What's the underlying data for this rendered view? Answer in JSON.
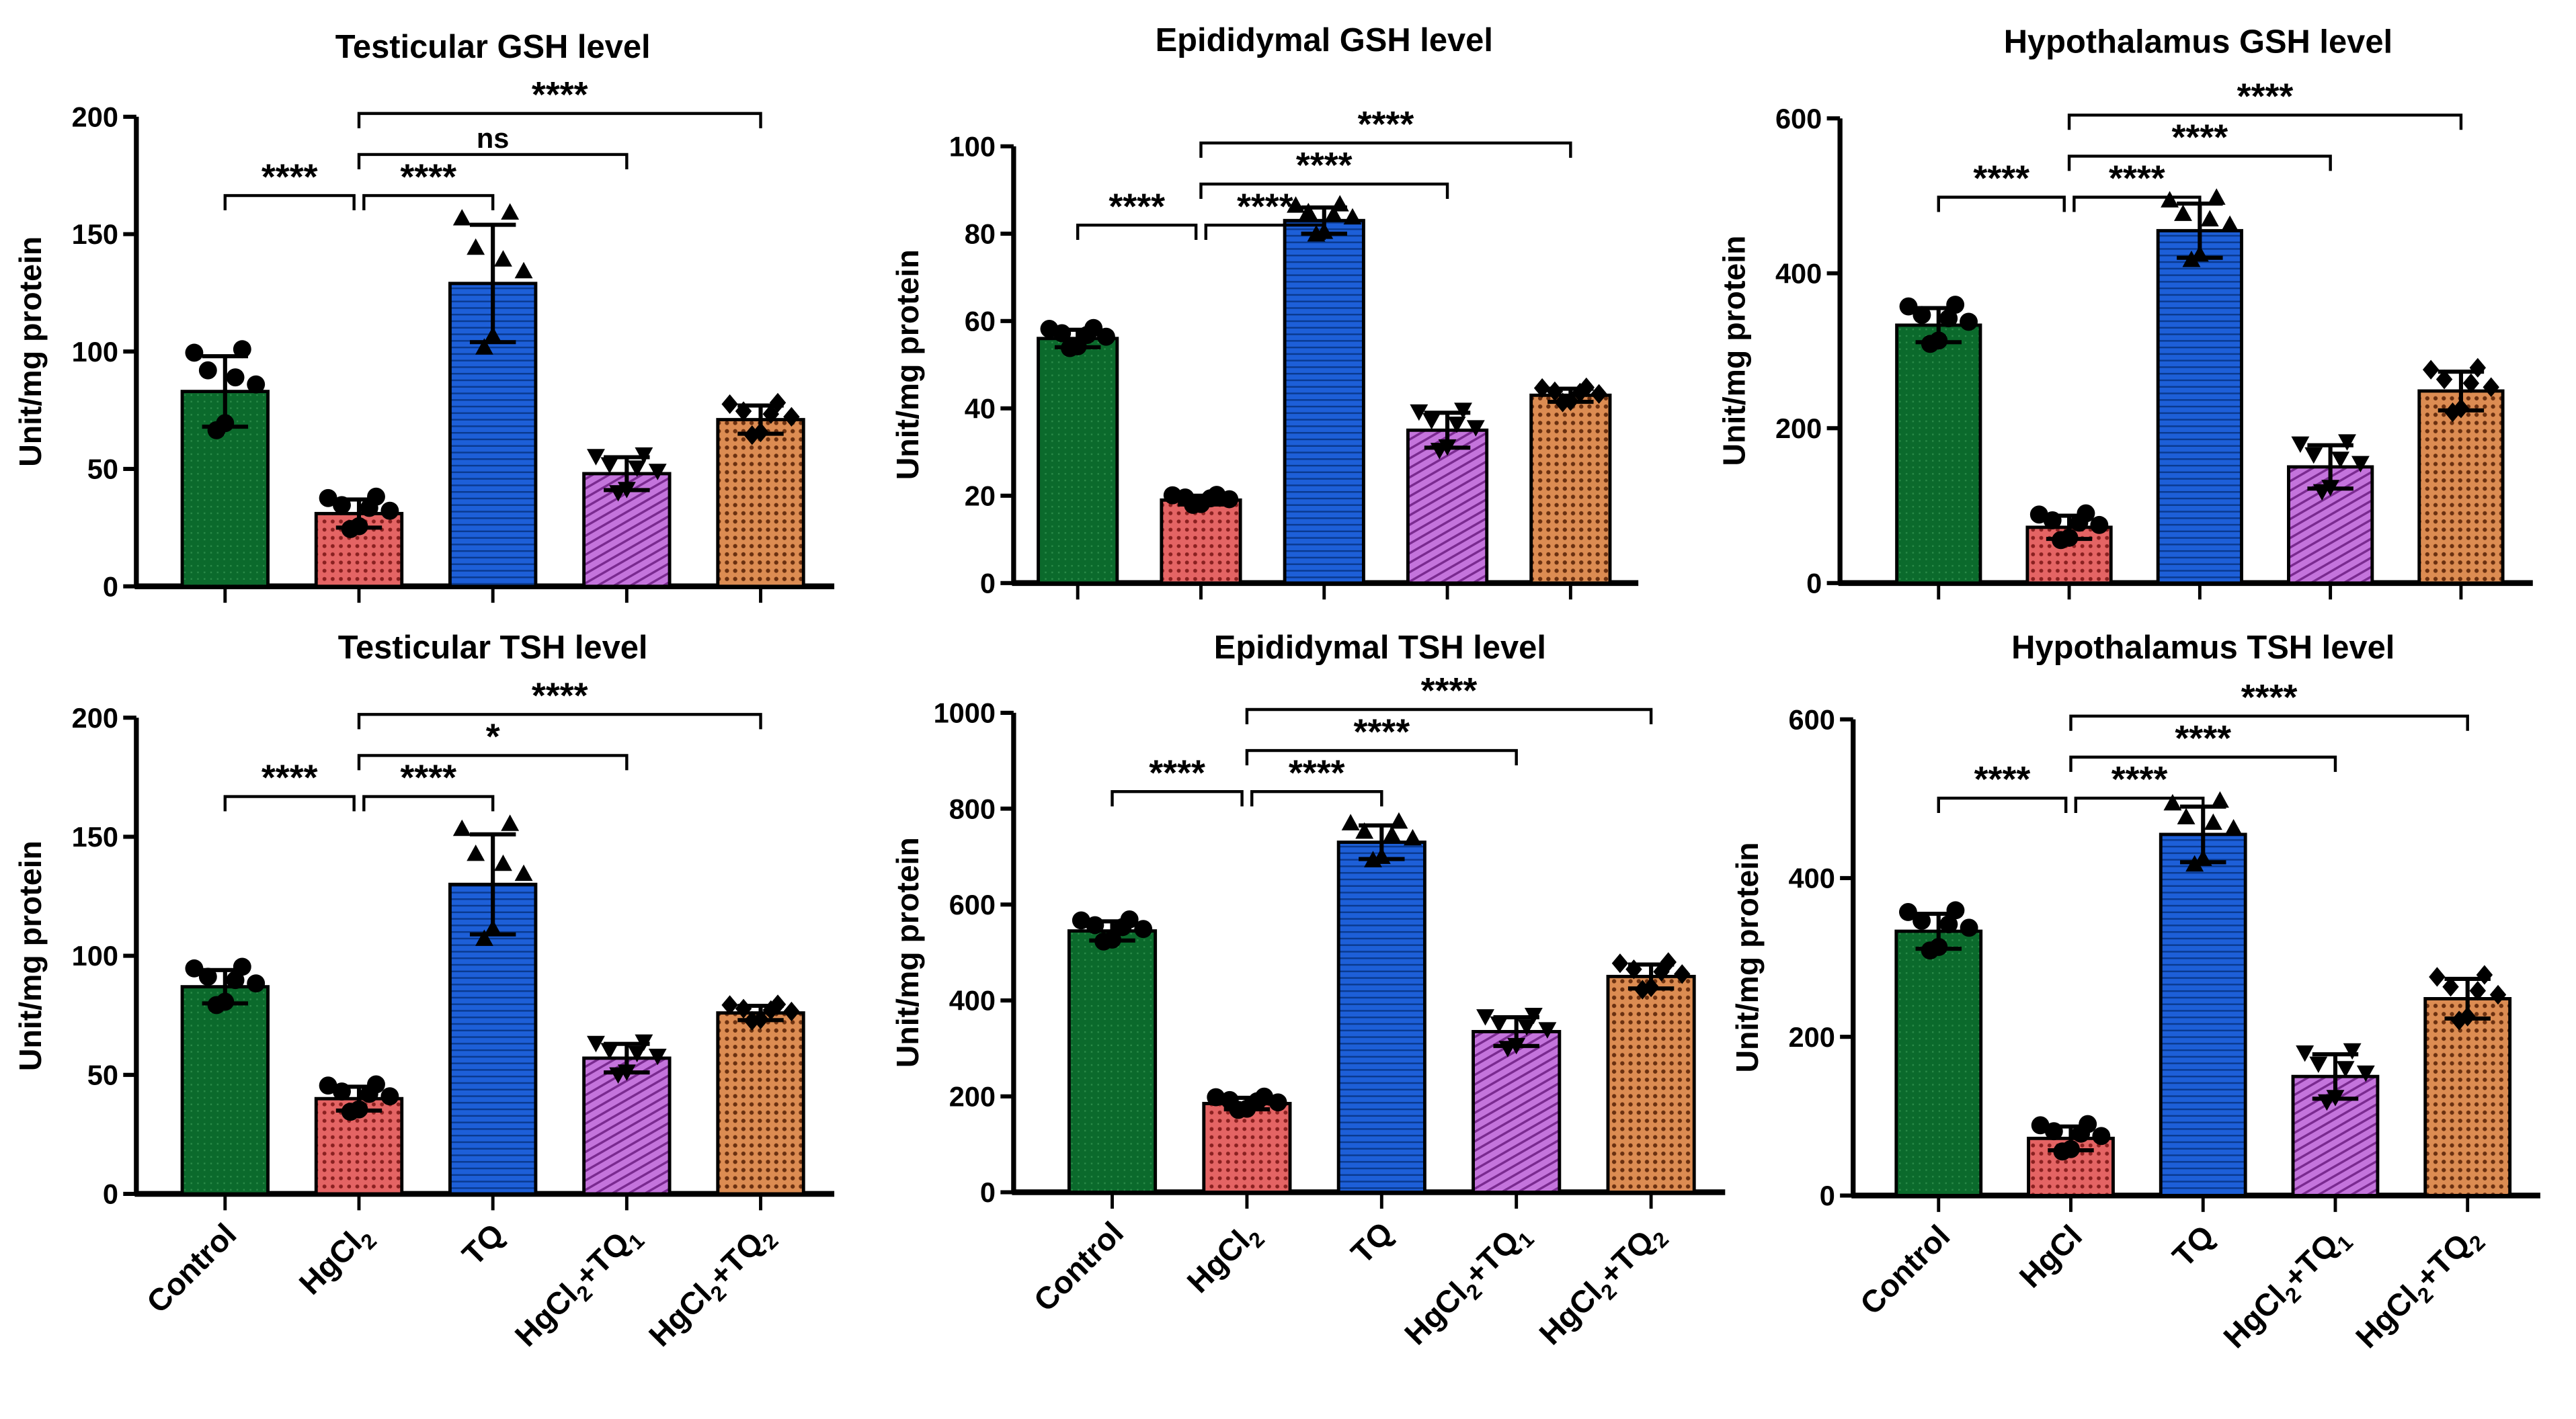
{
  "chart_data": [
    {
      "type": "bar",
      "title": "Testicular GSH level",
      "ylabel": "Unit/mg protein",
      "ylim": [
        0,
        200
      ],
      "yticks": [
        0,
        50,
        100,
        150,
        200
      ],
      "categories": [
        {
          "t": "Control"
        },
        {
          "t": "HgCl",
          "sub": "2"
        },
        {
          "t": "TQ"
        },
        {
          "t": "HgCl",
          "sub": "2",
          "t2": "+TQ",
          "sub2": "1"
        },
        {
          "t": "HgCl",
          "sub": "2",
          "t2": "+TQ",
          "sub2": "2"
        }
      ],
      "show_xlabels": false,
      "values": [
        83,
        31,
        129,
        48,
        71
      ],
      "sd": [
        15,
        6,
        25,
        7,
        6
      ],
      "comparisons": [
        {
          "a": 0,
          "b": 1,
          "label": "****",
          "tier": 0
        },
        {
          "a": 1,
          "b": 2,
          "label": "****",
          "tier": 0
        },
        {
          "a": 1,
          "b": 3,
          "label": "ns",
          "tier": 1
        },
        {
          "a": 1,
          "b": 4,
          "label": "****",
          "tier": 2
        }
      ]
    },
    {
      "type": "bar",
      "title": "Epididymal GSH level",
      "ylabel": "Unit/mg protein",
      "ylim": [
        0,
        100
      ],
      "yticks": [
        0,
        20,
        40,
        60,
        80,
        100
      ],
      "categories": [
        {
          "t": "Control"
        },
        {
          "t": "HgCl",
          "sub": "2"
        },
        {
          "t": "TQ"
        },
        {
          "t": "HgCl",
          "sub": "2",
          "t2": "+TQ",
          "sub2": "1"
        },
        {
          "t": "HgCl",
          "sub": "2",
          "t2": "+TQ",
          "sub2": "2"
        }
      ],
      "show_xlabels": false,
      "values": [
        56,
        19,
        83,
        35,
        43
      ],
      "sd": [
        2,
        1,
        3,
        4,
        1.5
      ],
      "comparisons": [
        {
          "a": 0,
          "b": 1,
          "label": "****",
          "tier": 0
        },
        {
          "a": 1,
          "b": 2,
          "label": "****",
          "tier": 0
        },
        {
          "a": 1,
          "b": 3,
          "label": "****",
          "tier": 1
        },
        {
          "a": 1,
          "b": 4,
          "label": "****",
          "tier": 2
        }
      ]
    },
    {
      "type": "bar",
      "title": "Hypothalamus GSH level",
      "ylabel": "Unit/mg protein",
      "ylim": [
        0,
        600
      ],
      "yticks": [
        0,
        200,
        400,
        600
      ],
      "categories": [
        {
          "t": "Control"
        },
        {
          "t": "HgCl"
        },
        {
          "t": "TQ"
        },
        {
          "t": "HgCl",
          "sub": "2",
          "t2": "+TQ",
          "sub2": "1"
        },
        {
          "t": "HgCl",
          "sub": "2",
          "t2": "+TQ",
          "sub2": "2"
        }
      ],
      "show_xlabels": false,
      "values": [
        333,
        72,
        455,
        150,
        248
      ],
      "sd": [
        22,
        15,
        35,
        28,
        25
      ],
      "comparisons": [
        {
          "a": 0,
          "b": 1,
          "label": "****",
          "tier": 0
        },
        {
          "a": 1,
          "b": 2,
          "label": "****",
          "tier": 0
        },
        {
          "a": 1,
          "b": 3,
          "label": "****",
          "tier": 1
        },
        {
          "a": 1,
          "b": 4,
          "label": "****",
          "tier": 2
        }
      ]
    },
    {
      "type": "bar",
      "title": "Testicular TSH level",
      "ylabel": "Unit/mg protein",
      "ylim": [
        0,
        200
      ],
      "yticks": [
        0,
        50,
        100,
        150,
        200
      ],
      "categories": [
        {
          "t": "Control"
        },
        {
          "t": "HgCl",
          "sub": "2"
        },
        {
          "t": "TQ"
        },
        {
          "t": "HgCl",
          "sub": "2",
          "t2": "+TQ",
          "sub2": "1"
        },
        {
          "t": "HgCl",
          "sub": "2",
          "t2": "+TQ",
          "sub2": "2"
        }
      ],
      "show_xlabels": true,
      "values": [
        87,
        40,
        130,
        57,
        76
      ],
      "sd": [
        7,
        5,
        21,
        6,
        3
      ],
      "comparisons": [
        {
          "a": 0,
          "b": 1,
          "label": "****",
          "tier": 0
        },
        {
          "a": 1,
          "b": 2,
          "label": "****",
          "tier": 0
        },
        {
          "a": 1,
          "b": 3,
          "label": "*",
          "tier": 1
        },
        {
          "a": 1,
          "b": 4,
          "label": "****",
          "tier": 2
        }
      ]
    },
    {
      "type": "bar",
      "title": "Epididymal TSH level",
      "ylabel": "Unit/mg protein",
      "ylim": [
        0,
        1000
      ],
      "yticks": [
        0,
        200,
        400,
        600,
        800,
        1000
      ],
      "categories": [
        {
          "t": "Control"
        },
        {
          "t": "HgCl",
          "sub": "2"
        },
        {
          "t": "TQ"
        },
        {
          "t": "HgCl",
          "sub": "2",
          "t2": "+TQ",
          "sub2": "1"
        },
        {
          "t": "HgCl",
          "sub": "2",
          "t2": "+TQ",
          "sub2": "2"
        }
      ],
      "show_xlabels": true,
      "values": [
        545,
        185,
        730,
        335,
        450
      ],
      "sd": [
        20,
        12,
        35,
        30,
        25
      ],
      "comparisons": [
        {
          "a": 0,
          "b": 1,
          "label": "****",
          "tier": 0
        },
        {
          "a": 1,
          "b": 2,
          "label": "****",
          "tier": 0
        },
        {
          "a": 1,
          "b": 3,
          "label": "****",
          "tier": 1
        },
        {
          "a": 1,
          "b": 4,
          "label": "****",
          "tier": 2
        }
      ]
    },
    {
      "type": "bar",
      "title": "Hypothalamus TSH level",
      "ylabel": "Unit/mg protein",
      "ylim": [
        0,
        600
      ],
      "yticks": [
        0,
        200,
        400,
        600
      ],
      "categories": [
        {
          "t": "Control"
        },
        {
          "t": "HgCl"
        },
        {
          "t": "TQ"
        },
        {
          "t": "HgCl",
          "sub": "2",
          "t2": "+TQ",
          "sub2": "1"
        },
        {
          "t": "HgCl",
          "sub": "2",
          "t2": "+TQ",
          "sub2": "2"
        }
      ],
      "show_xlabels": true,
      "values": [
        333,
        72,
        455,
        150,
        248
      ],
      "sd": [
        22,
        15,
        35,
        28,
        25
      ],
      "comparisons": [
        {
          "a": 0,
          "b": 1,
          "label": "****",
          "tier": 0
        },
        {
          "a": 1,
          "b": 2,
          "label": "****",
          "tier": 0
        },
        {
          "a": 1,
          "b": 3,
          "label": "****",
          "tier": 1
        },
        {
          "a": 1,
          "b": 4,
          "label": "****",
          "tier": 2
        }
      ]
    }
  ],
  "colors": [
    "#0b6a2c",
    "#e46464",
    "#1d5fd8",
    "#c474dc",
    "#dc8c52"
  ],
  "markers": [
    "circle",
    "circle",
    "triangle-up",
    "triangle-down",
    "diamond"
  ]
}
